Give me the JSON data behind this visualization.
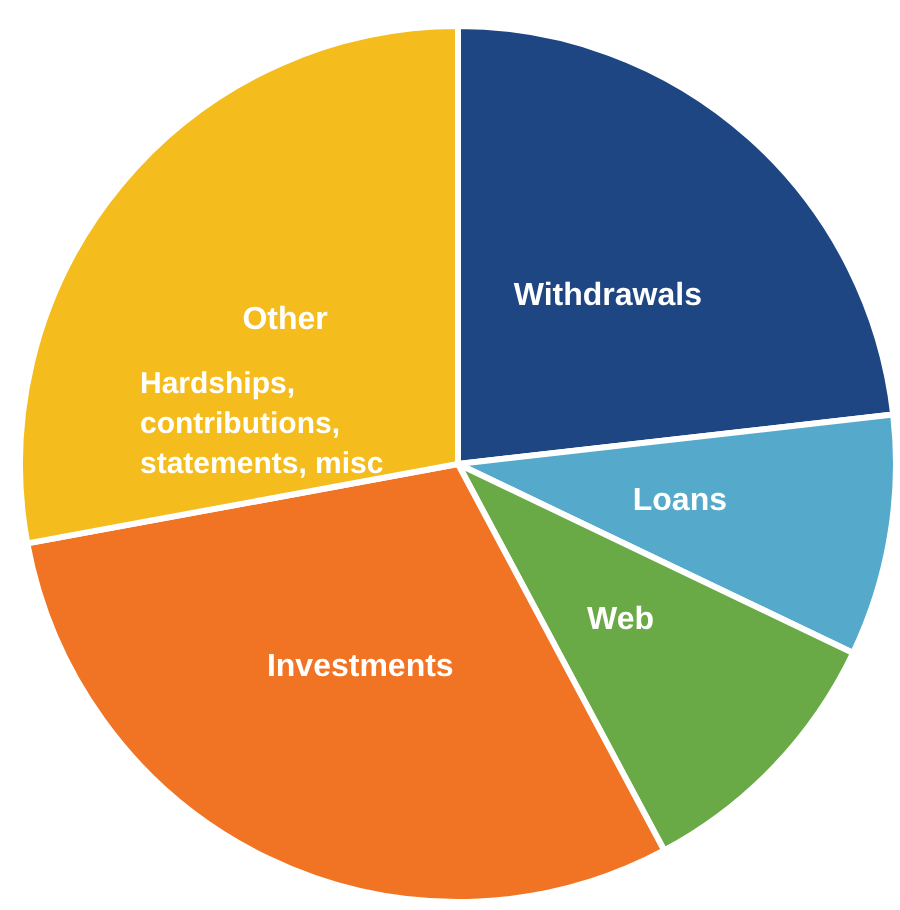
{
  "chart_data": {
    "type": "pie",
    "categories": [
      "Withdrawals",
      "Loans",
      "Web",
      "Investments",
      "Other"
    ],
    "values": [
      23.2,
      8.9,
      10.1,
      29.9,
      27.9
    ],
    "colors": [
      "#1e4682",
      "#55aacb",
      "#6aaa46",
      "#f07423",
      "#f4bc1c"
    ],
    "annotations": [
      "Hardships, contributions, statements, misc"
    ],
    "legend": false
  }
}
